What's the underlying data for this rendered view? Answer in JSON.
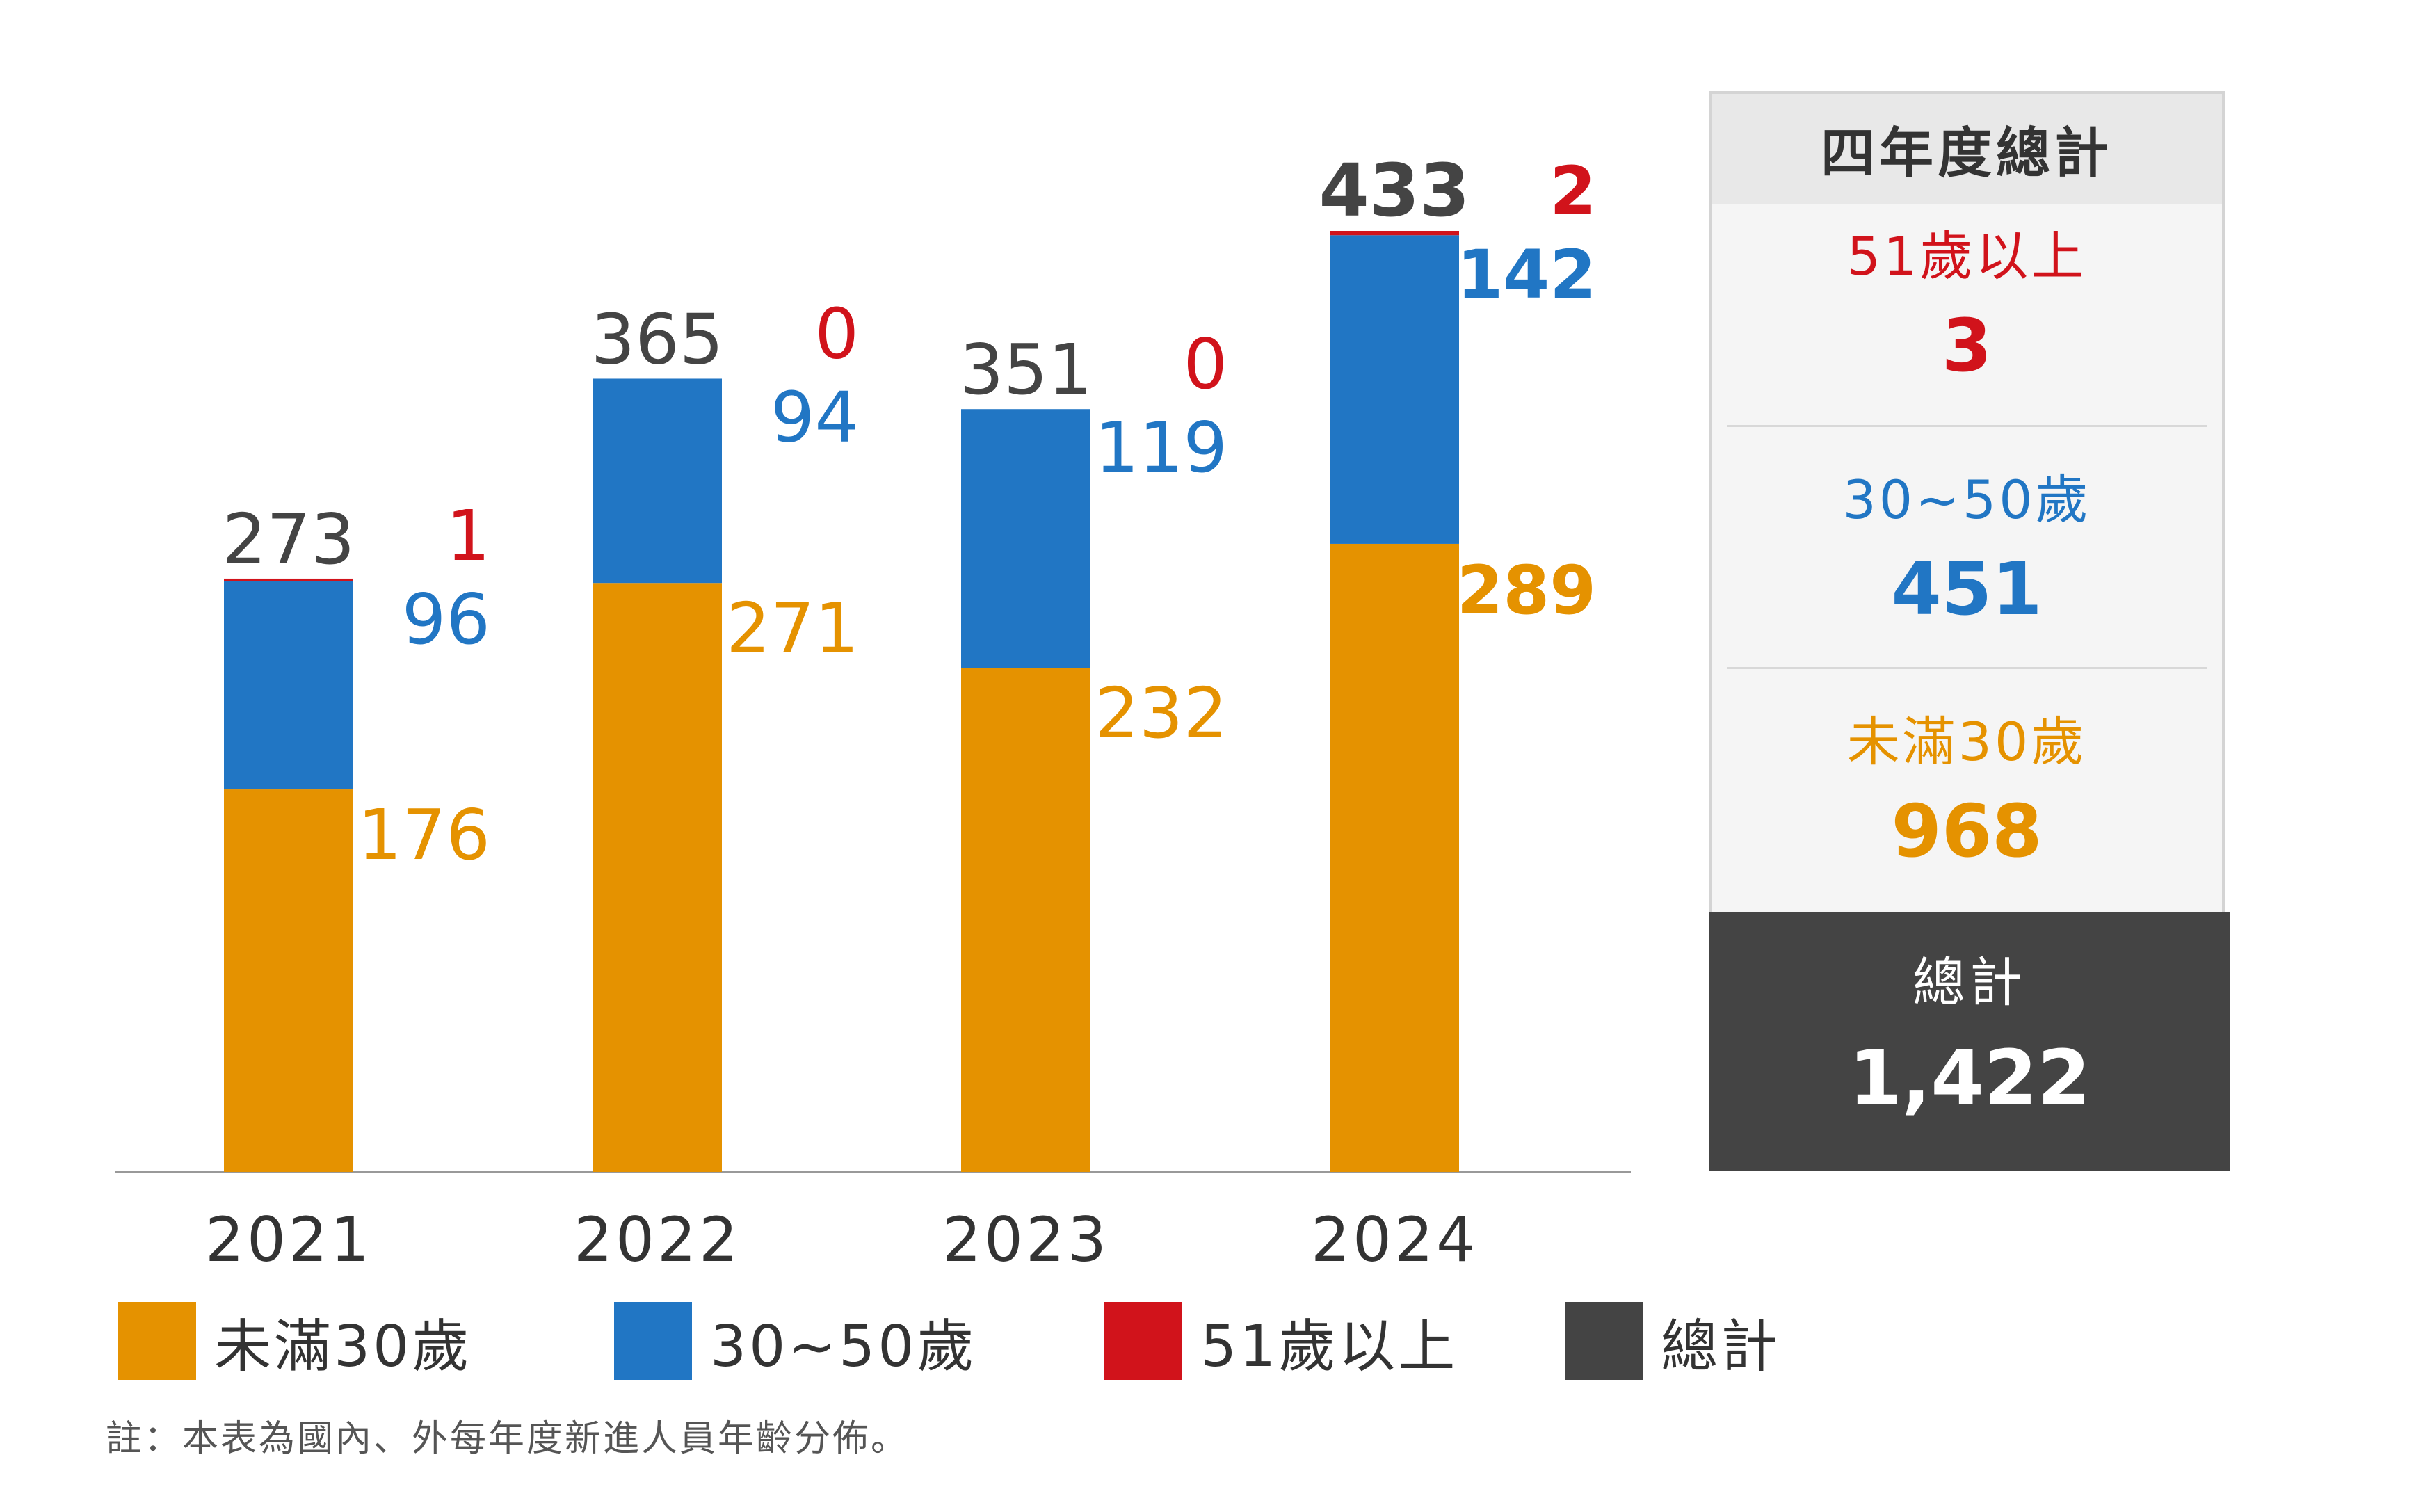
{
  "chart_data": {
    "type": "bar",
    "stacked": true,
    "categories": [
      "2021",
      "2022",
      "2023",
      "2024"
    ],
    "series": [
      {
        "name": "未滿30歲",
        "color": "#E59200",
        "values": [
          176,
          271,
          232,
          289
        ]
      },
      {
        "name": "30~50歲",
        "color": "#2176C4",
        "values": [
          96,
          94,
          119,
          142
        ]
      },
      {
        "name": "51歲以上",
        "color": "#D1131B",
        "values": [
          1,
          0,
          0,
          2
        ]
      }
    ],
    "totals": {
      "name": "總計",
      "color": "#444444",
      "values": [
        "273",
        "365",
        "351",
        "433"
      ]
    },
    "segment_labels": [
      {
        "series": [
          "176",
          "96",
          "1"
        ]
      },
      {
        "series": [
          "271",
          "94",
          "0"
        ]
      },
      {
        "series": [
          "232",
          "119",
          "0"
        ]
      },
      {
        "series": [
          "289",
          "142",
          "2"
        ]
      }
    ],
    "highlight_category": "2024",
    "title": "",
    "xlabel": "",
    "ylabel": "",
    "ylim": [
      0,
      465
    ],
    "grid": false,
    "legend_position": "bottom"
  },
  "summary_panel": {
    "title": "四年度總計",
    "sections": [
      {
        "label": "51歲以上",
        "value": "3",
        "color": "#D1131B"
      },
      {
        "label": "30~50歲",
        "value": "451",
        "color": "#2176C4"
      },
      {
        "label": "未滿30歲",
        "value": "968",
        "color": "#E59200"
      }
    ],
    "total_label": "總計",
    "total_value": "1,422"
  },
  "legend": [
    {
      "label": "未滿30歲",
      "color": "#E59200"
    },
    {
      "label": "30~50歲",
      "color": "#2176C4"
    },
    {
      "label": "51歲以上",
      "color": "#D1131B"
    },
    {
      "label": "總計",
      "color": "#444444"
    }
  ],
  "footnote": "註：本表為國內、外每年度新進人員年齡分佈。"
}
